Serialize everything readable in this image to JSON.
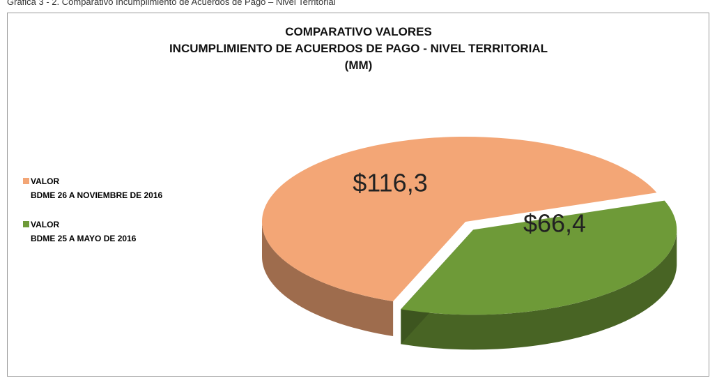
{
  "caption": "Gráfica 3 - 2. Comparativo Incumplimiento de Acuerdos de Pago – Nivel Territorial",
  "chart_data": {
    "type": "pie",
    "title": "COMPARATIVO VALORES\nINCUMPLIMIENTO DE ACUERDOS DE PAGO - NIVEL TERRITORIAL\n(MM)",
    "categories": [
      "VALOR\nBDME 26 A NOVIEMBRE DE 2016",
      "VALOR\nBDME 25 A MAYO DE 2016"
    ],
    "values": [
      116.3,
      66.4
    ],
    "value_labels": [
      "$116,3",
      "$66,4"
    ],
    "colors": [
      "#f3a676",
      "#6e9a38"
    ],
    "legend": "left"
  }
}
